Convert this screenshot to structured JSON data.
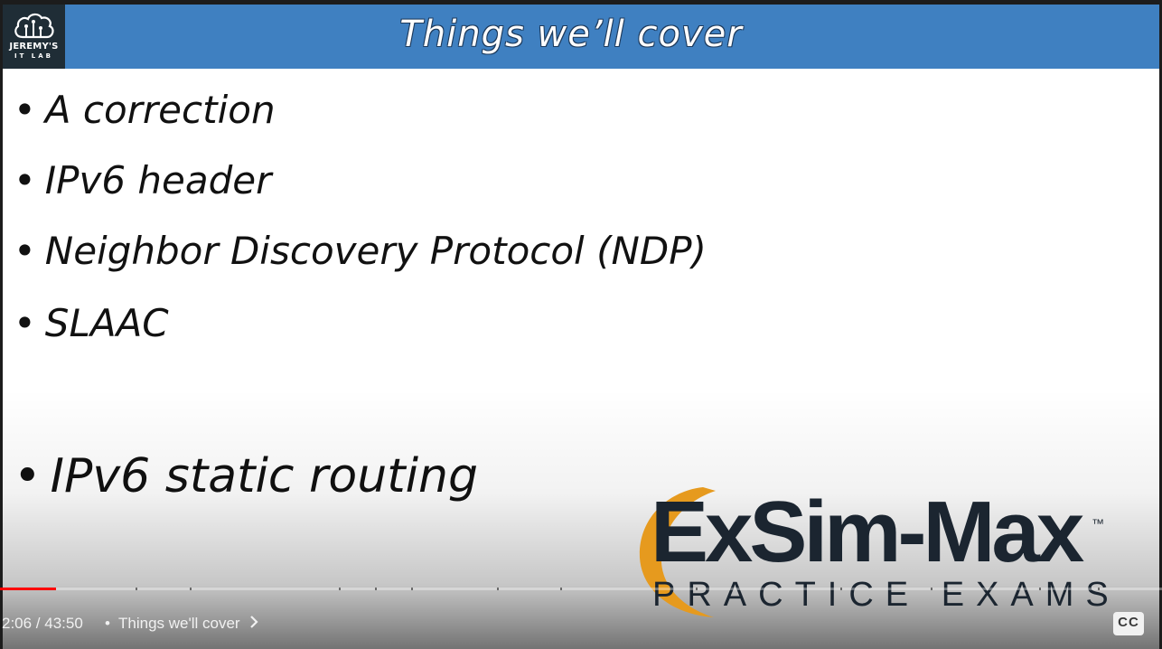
{
  "slide": {
    "title": "Things we’ll cover",
    "logo": {
      "line1": "JEREMY'S",
      "line2": "IT LAB",
      "icon": "cloud-circuit-icon"
    },
    "bullets": [
      "A correction",
      "IPv6 header",
      "Neighbor Discovery Protocol (NDP)",
      "SLAAC",
      "IPv6 static routing"
    ],
    "bullet_glyph": "•"
  },
  "overlay": {
    "brand": "ExSim-Max",
    "trademark": "™",
    "tagline": "PRACTICE EXAMS",
    "swoosh_color": "#e69a1e"
  },
  "player": {
    "time_display": "2:06 / 43:50",
    "separator": "•",
    "chapter_title": "Things we'll cover",
    "cc_label": "CC",
    "progress": 0.048,
    "accent": "#ff0000"
  }
}
